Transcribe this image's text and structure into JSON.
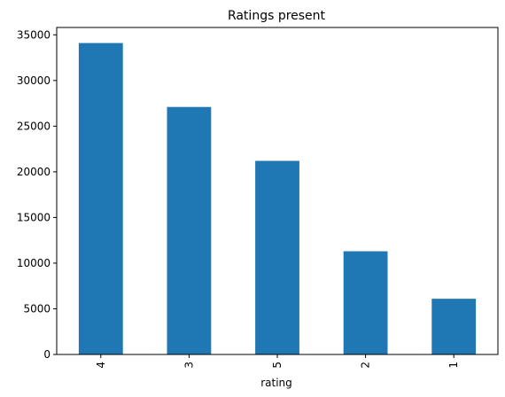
{
  "chart_data": {
    "type": "bar",
    "title": "Ratings present",
    "xlabel": "rating",
    "ylabel": "",
    "categories": [
      "4",
      "3",
      "5",
      "2",
      "1"
    ],
    "values": [
      34100,
      27100,
      21200,
      11300,
      6100
    ],
    "ylim": [
      0,
      35805
    ],
    "yticks": [
      0,
      5000,
      10000,
      15000,
      20000,
      25000,
      30000,
      35000
    ],
    "grid": false,
    "legend": "none",
    "bar_color": "#1f77b4"
  }
}
